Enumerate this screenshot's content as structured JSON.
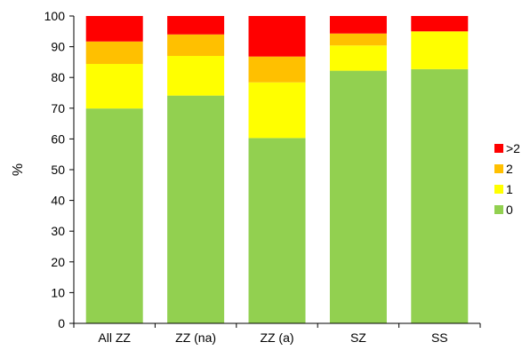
{
  "chart_data": {
    "type": "bar",
    "stacked": true,
    "categories": [
      "All ZZ",
      "ZZ (na)",
      "ZZ (a)",
      "SZ",
      "SS"
    ],
    "series": [
      {
        "name": "0",
        "color": "#92D050",
        "values": [
          69.9,
          74.1,
          60.3,
          82.2,
          82.7
        ]
      },
      {
        "name": "1",
        "color": "#FFFF00",
        "values": [
          14.5,
          12.9,
          18.1,
          8.2,
          12.3
        ]
      },
      {
        "name": "2",
        "color": "#FFC000",
        "values": [
          7.3,
          7.0,
          8.4,
          3.9,
          0.0
        ]
      },
      {
        "name": ">2",
        "color": "#FF0000",
        "values": [
          8.3,
          6.0,
          13.2,
          5.7,
          5.0
        ]
      }
    ],
    "ylabel": "%",
    "xlabel": "",
    "ylim": [
      0,
      100
    ],
    "yticks": [
      0,
      10,
      20,
      30,
      40,
      50,
      60,
      70,
      80,
      90,
      100
    ],
    "grid": false,
    "legend": {
      "position": "right",
      "order": [
        ">2",
        "2",
        "1",
        "0"
      ]
    }
  }
}
